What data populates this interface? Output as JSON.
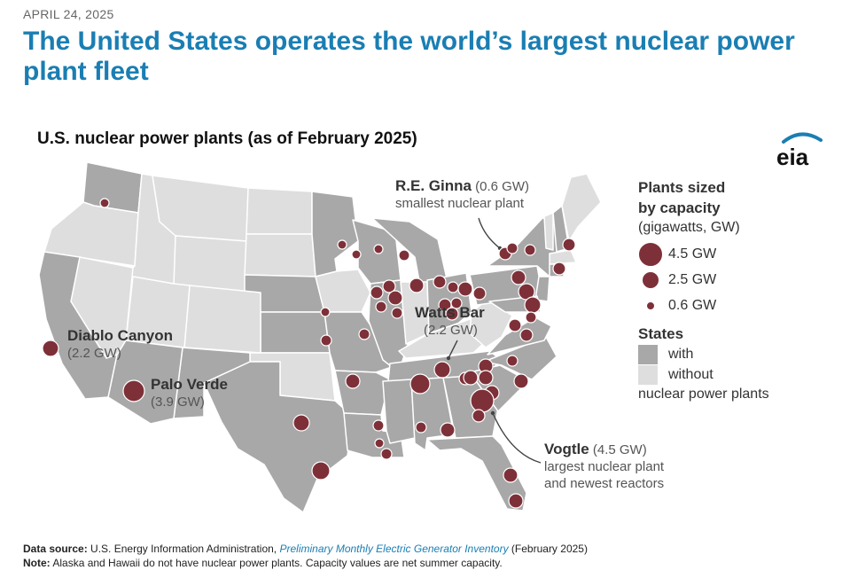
{
  "header": {
    "date": "APRIL 24, 2025",
    "headline": "The United States operates the world’s largest nuclear power plant fleet"
  },
  "map": {
    "title": "U.S. nuclear power plants (as of February 2025)",
    "logo_text": "eia",
    "colors": {
      "with_plants": "#a8a8a8",
      "without_plants": "#dedede",
      "plant_fill": "#7e3038",
      "border": "#ffffff"
    }
  },
  "callouts": {
    "ginna": {
      "name": "R.E. Ginna",
      "capacity": "(0.6 GW)",
      "note": "smallest nuclear plant"
    },
    "watts_bar": {
      "name": "Watts Bar",
      "capacity": "(2.2 GW)"
    },
    "diablo": {
      "name": "Diablo Canyon",
      "capacity": "(2.2 GW)"
    },
    "palo_verde": {
      "name": "Palo Verde",
      "capacity": "(3.9 GW)"
    },
    "vogtle": {
      "name": "Vogtle",
      "capacity": "(4.5 GW)",
      "note1": "largest nuclear plant",
      "note2": "and newest reactors"
    }
  },
  "legend": {
    "size_title_1": "Plants sized",
    "size_title_2": "by capacity",
    "size_subtitle": "(gigawatts, GW)",
    "sizes": [
      {
        "label": "4.5 GW",
        "value": 4.5
      },
      {
        "label": "2.5 GW",
        "value": 2.5
      },
      {
        "label": "0.6 GW",
        "value": 0.6
      }
    ],
    "states_title": "States",
    "with_label": "with",
    "without_label": "without",
    "nuclear_label": "nuclear power plants"
  },
  "footer": {
    "source_label": "Data source:",
    "source_text": "U.S. Energy Information Administration,",
    "source_link": "Preliminary Monthly Electric Generator Inventory",
    "source_date": "(February 2025)",
    "note_label": "Note:",
    "note_text": "Alaska and Hawaii do not have nuclear power plants. Capacity values are net summer capacity."
  }
}
